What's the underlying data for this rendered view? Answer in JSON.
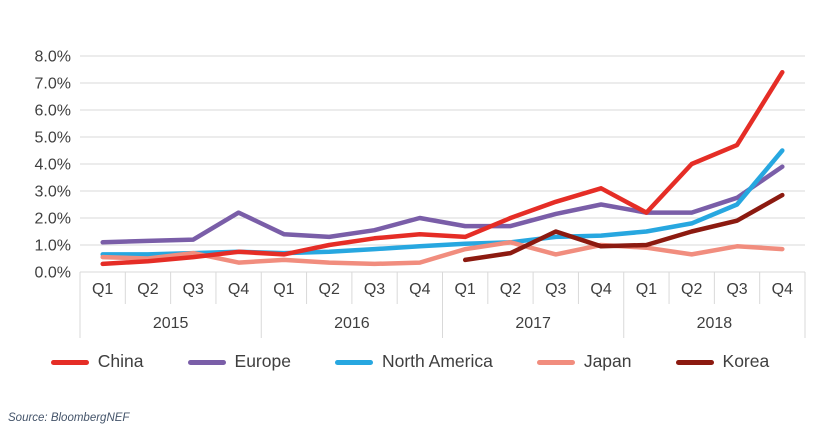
{
  "source_note": "Source: BloombergNEF",
  "chart_data": {
    "type": "line",
    "title": "",
    "xlabel": "",
    "ylabel": "",
    "ylim": [
      0,
      8
    ],
    "grid": true,
    "legend_position": "bottom",
    "y_tick_labels": [
      "0.0%",
      "1.0%",
      "2.0%",
      "3.0%",
      "4.0%",
      "5.0%",
      "6.0%",
      "7.0%",
      "8.0%"
    ],
    "quarter_labels": [
      "Q1",
      "Q2",
      "Q3",
      "Q4",
      "Q1",
      "Q2",
      "Q3",
      "Q4",
      "Q1",
      "Q2",
      "Q3",
      "Q4",
      "Q1",
      "Q2",
      "Q3",
      "Q4"
    ],
    "year_labels": [
      "2015",
      "2016",
      "2017",
      "2018"
    ],
    "series": [
      {
        "name": "China",
        "color": "#e52d26",
        "values": [
          0.3,
          0.4,
          0.55,
          0.75,
          0.65,
          1.0,
          1.25,
          1.4,
          1.3,
          2.0,
          2.6,
          3.1,
          2.2,
          4.0,
          4.7,
          7.4
        ]
      },
      {
        "name": "Europe",
        "color": "#7a5ea8",
        "values": [
          1.1,
          1.15,
          1.2,
          2.2,
          1.4,
          1.3,
          1.55,
          2.0,
          1.7,
          1.7,
          2.15,
          2.5,
          2.2,
          2.2,
          2.75,
          3.9
        ]
      },
      {
        "name": "North America",
        "color": "#27a7e0",
        "values": [
          0.65,
          0.65,
          0.7,
          0.75,
          0.7,
          0.75,
          0.85,
          0.95,
          1.05,
          1.1,
          1.3,
          1.35,
          1.5,
          1.8,
          2.5,
          4.5
        ]
      },
      {
        "name": "Japan",
        "color": "#f18d7e",
        "values": [
          0.55,
          0.5,
          0.7,
          0.35,
          0.45,
          0.35,
          0.3,
          0.35,
          0.85,
          1.1,
          0.65,
          1.0,
          0.9,
          0.65,
          0.95,
          0.85
        ]
      },
      {
        "name": "Korea",
        "color": "#8c1a10",
        "values": [
          null,
          null,
          null,
          null,
          null,
          null,
          null,
          null,
          0.45,
          0.7,
          1.5,
          0.95,
          1.0,
          1.5,
          1.9,
          2.85
        ]
      }
    ],
    "style": {
      "grid_color": "#d9d9d9",
      "tick_color": "#d9d9d9",
      "text_color": "#3f3f3f",
      "line_width": 4.5
    }
  }
}
